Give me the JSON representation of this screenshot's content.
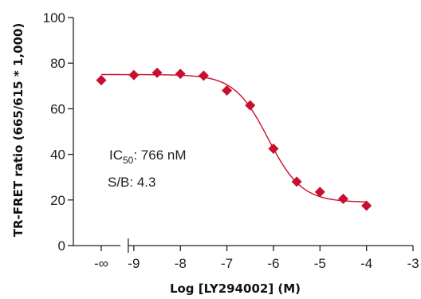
{
  "chart_data": {
    "type": "scatter",
    "title": "",
    "xlabel": "Log [LY294002] (M)",
    "ylabel": "TR-FRET ratio (665/615 * 1,000)",
    "xlim": [
      -10.3,
      -3
    ],
    "ylim": [
      0,
      100
    ],
    "x_ticks": [
      -9,
      -8,
      -7,
      -6,
      -5,
      -4,
      -3
    ],
    "x_tick_labels": [
      "-9",
      "-8",
      "-7",
      "-6",
      "-5",
      "-4",
      "-3"
    ],
    "x_break_tick": {
      "x": -9.7,
      "label": "-∞"
    },
    "y_ticks": [
      0,
      20,
      40,
      60,
      80,
      100
    ],
    "y_tick_labels": [
      "0",
      "20",
      "40",
      "60",
      "80",
      "100"
    ],
    "grid": false,
    "legend": "none",
    "marker": "diamond",
    "color": "#c8102e",
    "series": [
      {
        "values": [
          {
            "x": "-∞",
            "y": 72.5
          },
          {
            "x": -9.0,
            "y": 74.8
          },
          {
            "x": -8.5,
            "y": 75.8
          },
          {
            "x": -8.0,
            "y": 75.3
          },
          {
            "x": -7.5,
            "y": 74.5
          },
          {
            "x": -7.0,
            "y": 68.0
          },
          {
            "x": -6.5,
            "y": 61.5
          },
          {
            "x": -6.0,
            "y": 42.5
          },
          {
            "x": -5.5,
            "y": 28.0
          },
          {
            "x": -5.0,
            "y": 23.5
          },
          {
            "x": -4.5,
            "y": 20.5
          },
          {
            "x": -4.0,
            "y": 17.5
          }
        ]
      }
    ],
    "fit_curve": {
      "model": "four-parameter logistic",
      "top": 75,
      "bottom": 19,
      "log_ic50": -6.116,
      "hill_slope": 1.2,
      "x_range": [
        -9.3,
        -4.0
      ],
      "baseline_segment": {
        "x_from": -9.7,
        "x_to": -9.3,
        "y": 75
      }
    },
    "annotations": {
      "ic50_prefix": "IC",
      "ic50_subscript": "50",
      "ic50_value": ": 766 nM",
      "sb_text": "S/B: 4.3"
    }
  }
}
